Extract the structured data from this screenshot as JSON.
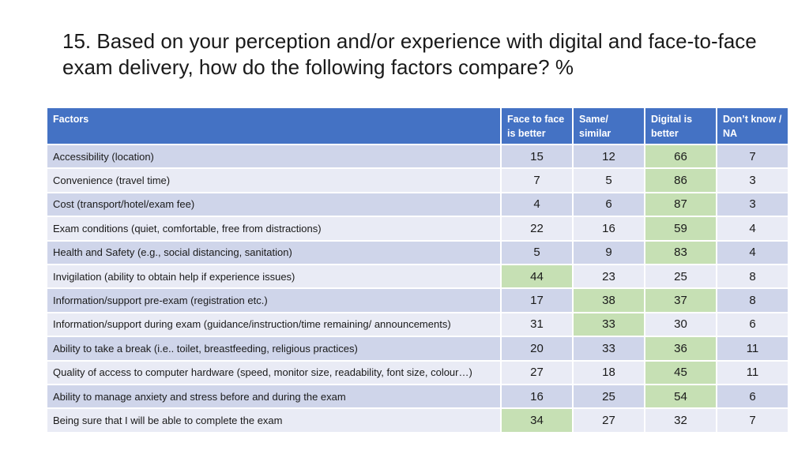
{
  "title": "15. Based on your perception and/or experience with digital and face-to-face exam delivery, how do the following factors compare? %",
  "table": {
    "headers": [
      "Factors",
      "Face to face is better",
      "Same/ similar",
      "Digital is better",
      "Don’t know / NA"
    ],
    "rows": [
      {
        "label": "Accessibility (location)",
        "values": [
          "15",
          "12",
          "66",
          "7"
        ],
        "highlight": [
          2
        ]
      },
      {
        "label": "Convenience (travel time)",
        "values": [
          "7",
          "5",
          "86",
          "3"
        ],
        "highlight": [
          2
        ]
      },
      {
        "label": "Cost (transport/hotel/exam fee)",
        "values": [
          "4",
          "6",
          "87",
          "3"
        ],
        "highlight": [
          2
        ]
      },
      {
        "label": "Exam conditions (quiet, comfortable, free from distractions)",
        "values": [
          "22",
          "16",
          "59",
          "4"
        ],
        "highlight": [
          2
        ]
      },
      {
        "label": "Health and Safety (e.g., social distancing, sanitation)",
        "values": [
          "5",
          "9",
          "83",
          "4"
        ],
        "highlight": [
          2
        ]
      },
      {
        "label": "Invigilation (ability to obtain help if experience issues)",
        "values": [
          "44",
          "23",
          "25",
          "8"
        ],
        "highlight": [
          0
        ]
      },
      {
        "label": "Information/support pre-exam (registration etc.)",
        "values": [
          "17",
          "38",
          "37",
          "8"
        ],
        "highlight": [
          1,
          2
        ]
      },
      {
        "label": "Information/support during exam (guidance/instruction/time remaining/ announcements)",
        "values": [
          "31",
          "33",
          "30",
          "6"
        ],
        "highlight": [
          1
        ]
      },
      {
        "label": "Ability to take a break (i.e.. toilet, breastfeeding, religious practices)",
        "values": [
          "20",
          "33",
          "36",
          "11"
        ],
        "highlight": [
          2
        ]
      },
      {
        "label": "Quality of access to computer hardware (speed, monitor size, readability, font size, colour…)",
        "values": [
          "27",
          "18",
          "45",
          "11"
        ],
        "highlight": [
          2
        ]
      },
      {
        "label": "Ability to manage anxiety and stress before and during the exam",
        "values": [
          "16",
          "25",
          "54",
          "6"
        ],
        "highlight": [
          2
        ]
      },
      {
        "label": "Being sure that I will be able to complete the exam",
        "values": [
          "34",
          "27",
          "32",
          "7"
        ],
        "highlight": [
          0
        ]
      }
    ]
  },
  "colors": {
    "header": "#4472c4",
    "row_odd": "#cfd5ea",
    "row_even": "#e9ebf5",
    "highlight": "#c6e0b4"
  }
}
